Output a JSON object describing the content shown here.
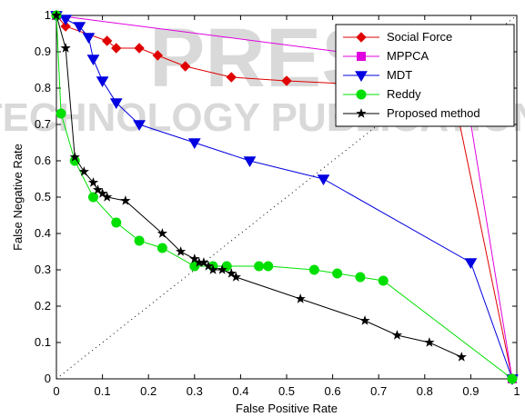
{
  "chart_data": {
    "type": "line",
    "title": "",
    "xlabel": "False Positive Rate",
    "ylabel": "False Negative Rate",
    "xlim": [
      0,
      1
    ],
    "ylim": [
      0,
      1
    ],
    "xticks": [
      0,
      0.1,
      0.2,
      0.3,
      0.4,
      0.5,
      0.6,
      0.7,
      0.8,
      0.9,
      1
    ],
    "yticks": [
      0,
      0.1,
      0.2,
      0.3,
      0.4,
      0.5,
      0.6,
      0.7,
      0.8,
      0.9,
      1
    ],
    "xtick_labels": [
      "0",
      "0.1",
      "0.2",
      "0.3",
      "0.4",
      "0.5",
      "0.6",
      "0.7",
      "0.8",
      "0.9",
      "1"
    ],
    "ytick_labels": [
      "0",
      "0.1",
      "0.2",
      "0.3",
      "0.4",
      "0.5",
      "0.6",
      "0.7",
      "0.8",
      "0.9",
      "1"
    ],
    "grid": false,
    "legend_position": "top-right",
    "watermark": [
      "PRESS",
      "TECHNOLOGY PUBLICATIONS"
    ],
    "reference_line": {
      "style": "dotted",
      "color": "#000000",
      "from": [
        0,
        0
      ],
      "to": [
        1,
        1
      ]
    },
    "series": [
      {
        "name": "Social Force",
        "color": "#e00000",
        "marker": "diamond",
        "x": [
          0.0,
          0.02,
          0.11,
          0.13,
          0.18,
          0.22,
          0.28,
          0.38,
          0.5,
          0.66,
          0.86,
          0.99
        ],
        "y": [
          1.0,
          0.97,
          0.93,
          0.91,
          0.91,
          0.89,
          0.86,
          0.83,
          0.82,
          0.81,
          0.8,
          0.0
        ]
      },
      {
        "name": "MPPCA",
        "color": "#e000e0",
        "marker": "square",
        "x": [
          0.0,
          0.8,
          0.88,
          0.99
        ],
        "y": [
          1.0,
          0.87,
          0.86,
          0.0
        ]
      },
      {
        "name": "MDT",
        "color": "#0000e0",
        "marker": "triangle-down",
        "x": [
          0.0,
          0.02,
          0.05,
          0.07,
          0.08,
          0.1,
          0.13,
          0.18,
          0.3,
          0.42,
          0.58,
          0.9,
          0.99
        ],
        "y": [
          1.0,
          0.99,
          0.97,
          0.94,
          0.88,
          0.82,
          0.76,
          0.7,
          0.65,
          0.6,
          0.55,
          0.32,
          0.0
        ]
      },
      {
        "name": "Reddy",
        "color": "#00e000",
        "marker": "circle",
        "x": [
          0.0,
          0.01,
          0.04,
          0.08,
          0.13,
          0.18,
          0.23,
          0.3,
          0.34,
          0.37,
          0.44,
          0.46,
          0.56,
          0.61,
          0.66,
          0.71,
          0.99
        ],
        "y": [
          1.0,
          0.73,
          0.6,
          0.5,
          0.43,
          0.38,
          0.36,
          0.31,
          0.31,
          0.31,
          0.31,
          0.31,
          0.3,
          0.29,
          0.28,
          0.27,
          0.0
        ]
      },
      {
        "name": "Proposed method",
        "color": "#000000",
        "marker": "star",
        "x": [
          0.0,
          0.02,
          0.04,
          0.06,
          0.08,
          0.09,
          0.1,
          0.11,
          0.15,
          0.23,
          0.27,
          0.3,
          0.31,
          0.32,
          0.33,
          0.34,
          0.36,
          0.38,
          0.39,
          0.53,
          0.67,
          0.74,
          0.81,
          0.88
        ],
        "y": [
          1.0,
          0.91,
          0.61,
          0.57,
          0.54,
          0.52,
          0.51,
          0.5,
          0.49,
          0.4,
          0.35,
          0.33,
          0.32,
          0.32,
          0.31,
          0.3,
          0.3,
          0.29,
          0.28,
          0.22,
          0.16,
          0.12,
          0.1,
          0.06
        ]
      }
    ]
  }
}
